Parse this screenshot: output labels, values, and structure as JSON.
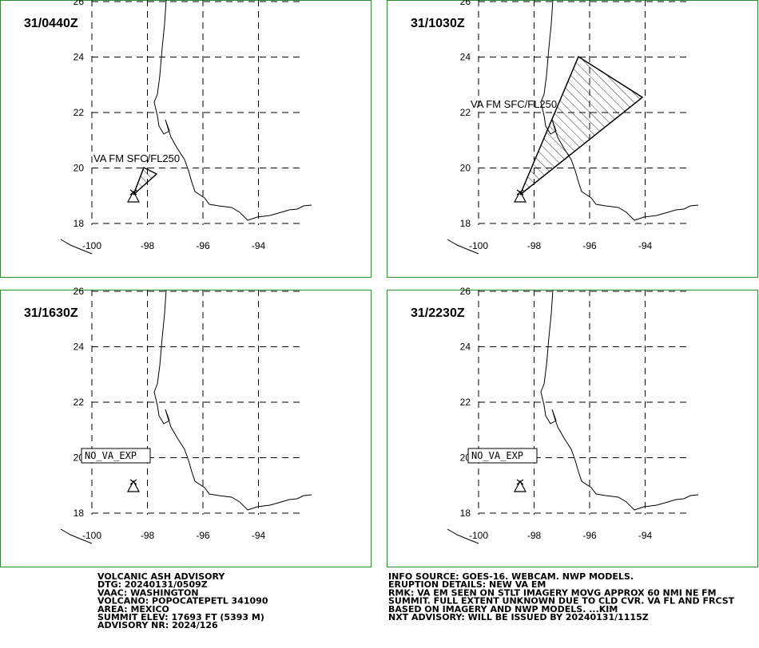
{
  "axes": {
    "lat_labels": [
      "26",
      "24",
      "22",
      "20",
      "18"
    ],
    "lon_labels": [
      "-100",
      "-98",
      "-96",
      "-94"
    ]
  },
  "panels": [
    {
      "time": "31/0440Z",
      "annotation": "VA FM SFC/FL250"
    },
    {
      "time": "31/1030Z",
      "annotation": "VA FM SFC/FL250"
    },
    {
      "time": "31/1630Z",
      "annotation": "NO_VA_EXP"
    },
    {
      "time": "31/2230Z",
      "annotation": "NO_VA_EXP"
    }
  ],
  "advisory": {
    "left": [
      "VOLCANIC ASH ADVISORY",
      "DTG: 20240131/0509Z",
      "VAAC: WASHINGTON",
      "VOLCANO: POPOCATEPETL 341090",
      "AREA: MEXICO",
      "SUMMIT ELEV: 17693 FT (5393 M)",
      "ADVISORY NR: 2024/126"
    ],
    "right": [
      "INFO SOURCE: GOES-16. WEBCAM. NWP MODELS.",
      "ERUPTION DETAILS: NEW VA EM",
      "RMK: VA EM SEEN ON STLT IMAGERY MOVG APPROX 60 NMI NE FM",
      "SUMMIT. FULL EXTENT UNKNOWN DUE TO CLD CVR. VA FL AND FRCST",
      "BASED ON IMAGERY AND NWP MODELS. ...KIM",
      "NXT ADVISORY: WILL BE ISSUED BY 20240131/1115Z"
    ]
  }
}
